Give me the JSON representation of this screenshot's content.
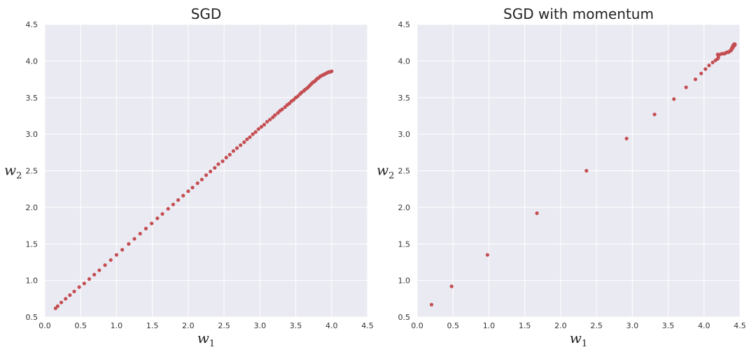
{
  "colors": {
    "plot_bg": "#eaeaf2",
    "grid": "#ffffff",
    "point": "#c44e52"
  },
  "chart_data": [
    {
      "type": "scatter",
      "title": "SGD",
      "xlabel": {
        "base": "w",
        "sub": "1"
      },
      "ylabel": {
        "base": "w",
        "sub": "2"
      },
      "xlim": [
        0.0,
        4.5
      ],
      "ylim": [
        0.5,
        4.5
      ],
      "xticks": [
        "0.0",
        "0.5",
        "1.0",
        "1.5",
        "2.0",
        "2.5",
        "3.0",
        "3.5",
        "4.0",
        "4.5"
      ],
      "yticks": [
        "0.5",
        "1.0",
        "1.5",
        "2.0",
        "2.5",
        "3.0",
        "3.5",
        "4.0",
        "4.5"
      ],
      "grid": true,
      "series": [
        {
          "x": [
            0.15,
            0.18,
            0.23,
            0.29,
            0.35,
            0.41,
            0.48,
            0.55,
            0.62,
            0.69,
            0.76,
            0.84,
            0.92,
            1.0,
            1.08,
            1.17,
            1.25,
            1.33,
            1.41,
            1.49,
            1.57,
            1.64,
            1.72,
            1.79,
            1.86,
            1.93,
            2.0,
            2.06,
            2.13,
            2.19,
            2.25,
            2.31,
            2.37,
            2.42,
            2.48,
            2.53,
            2.58,
            2.63,
            2.68,
            2.73,
            2.78,
            2.82,
            2.86,
            2.9,
            2.94,
            2.98,
            3.02,
            3.06,
            3.1,
            3.14,
            3.18,
            3.21,
            3.25,
            3.28,
            3.31,
            3.35,
            3.38,
            3.41,
            3.44,
            3.47,
            3.5,
            3.53,
            3.56,
            3.58,
            3.61,
            3.63,
            3.66,
            3.68,
            3.7,
            3.72,
            3.74,
            3.76,
            3.78,
            3.8,
            3.82,
            3.84,
            3.86,
            3.88,
            3.9,
            3.92,
            3.94,
            3.96,
            3.98,
            4.0
          ],
          "y": [
            0.62,
            0.65,
            0.7,
            0.75,
            0.8,
            0.85,
            0.91,
            0.96,
            1.02,
            1.08,
            1.14,
            1.21,
            1.28,
            1.35,
            1.42,
            1.5,
            1.57,
            1.64,
            1.71,
            1.78,
            1.85,
            1.91,
            1.98,
            2.04,
            2.1,
            2.16,
            2.22,
            2.27,
            2.33,
            2.38,
            2.44,
            2.49,
            2.54,
            2.59,
            2.63,
            2.68,
            2.72,
            2.77,
            2.81,
            2.85,
            2.89,
            2.93,
            2.96,
            3.0,
            3.03,
            3.07,
            3.1,
            3.13,
            3.17,
            3.2,
            3.23,
            3.26,
            3.29,
            3.32,
            3.34,
            3.37,
            3.4,
            3.42,
            3.45,
            3.47,
            3.5,
            3.52,
            3.55,
            3.57,
            3.59,
            3.61,
            3.63,
            3.65,
            3.67,
            3.69,
            3.71,
            3.72,
            3.74,
            3.76,
            3.77,
            3.79,
            3.8,
            3.81,
            3.82,
            3.83,
            3.84,
            3.85,
            3.85,
            3.86
          ]
        }
      ]
    },
    {
      "type": "scatter",
      "title": "SGD with momentum",
      "xlabel": {
        "base": "w",
        "sub": "1"
      },
      "ylabel": {
        "base": "w",
        "sub": "2"
      },
      "xlim": [
        0.0,
        4.5
      ],
      "ylim": [
        0.5,
        4.5
      ],
      "xticks": [
        "0.0",
        "0.5",
        "1.0",
        "1.5",
        "2.0",
        "2.5",
        "3.0",
        "3.5",
        "4.0",
        "4.5"
      ],
      "yticks": [
        "0.5",
        "1.0",
        "1.5",
        "2.0",
        "2.5",
        "3.0",
        "3.5",
        "4.0",
        "4.5"
      ],
      "grid": true,
      "series": [
        {
          "x": [
            0.2,
            0.48,
            0.98,
            1.67,
            2.36,
            2.92,
            3.31,
            3.58,
            3.75,
            3.88,
            3.96,
            4.02,
            4.07,
            4.12,
            4.16,
            4.19,
            4.2,
            4.19,
            4.22,
            4.25,
            4.28,
            4.3,
            4.32,
            4.34,
            4.35,
            4.37,
            4.38,
            4.39,
            4.4,
            4.41,
            4.42,
            4.43,
            4.41,
            4.39,
            4.38,
            4.4,
            4.42,
            4.43,
            4.41
          ],
          "y": [
            0.67,
            0.92,
            1.35,
            1.92,
            2.5,
            2.94,
            3.27,
            3.48,
            3.64,
            3.75,
            3.83,
            3.89,
            3.94,
            3.98,
            4.01,
            4.03,
            4.05,
            4.09,
            4.09,
            4.1,
            4.1,
            4.11,
            4.12,
            4.12,
            4.13,
            4.14,
            4.16,
            4.18,
            4.2,
            4.22,
            4.23,
            4.22,
            4.2,
            4.17,
            4.15,
            4.18,
            4.21,
            4.23,
            4.21
          ]
        }
      ]
    }
  ]
}
